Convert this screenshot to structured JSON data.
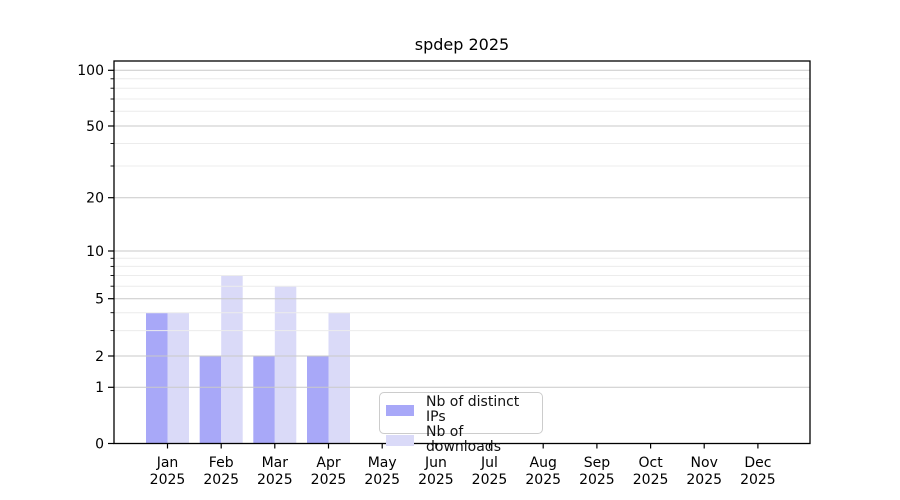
{
  "title": "spdep 2025",
  "chart_data": {
    "type": "bar",
    "title": "spdep 2025",
    "months": [
      "Jan",
      "Feb",
      "Mar",
      "Apr",
      "May",
      "Jun",
      "Jul",
      "Aug",
      "Sep",
      "Oct",
      "Nov",
      "Dec"
    ],
    "year": "2025",
    "categories": [
      "Jan 2025",
      "Feb 2025",
      "Mar 2025",
      "Apr 2025",
      "May 2025",
      "Jun 2025",
      "Jul 2025",
      "Aug 2025",
      "Sep 2025",
      "Oct 2025",
      "Nov 2025",
      "Dec 2025"
    ],
    "series": [
      {
        "name": "Nb of distinct IPs",
        "color": "#a8a8f8",
        "values": [
          4,
          2,
          2,
          2,
          0,
          0,
          0,
          0,
          0,
          0,
          0,
          0
        ]
      },
      {
        "name": "Nb of downloads",
        "color": "#dadaf8",
        "values": [
          4,
          7,
          6,
          4,
          0,
          0,
          0,
          0,
          0,
          0,
          0,
          0
        ]
      }
    ],
    "y_ticks": [
      0,
      1,
      2,
      5,
      10,
      20,
      50,
      100
    ],
    "y_minor_ticks": [
      3,
      4,
      6,
      7,
      8,
      9,
      30,
      40,
      60,
      70,
      80,
      90
    ],
    "ylim": [
      0,
      113
    ],
    "scale": "symlog (linear 0-1, log above)",
    "grid": true,
    "legend_position": "lower center"
  },
  "colors": {
    "background": "#ffffff",
    "axis": "#000000",
    "major_grid": "#c9c9c9",
    "minor_grid": "#ececec",
    "tick_label": "#000000",
    "legend_border": "#cccccc",
    "bar_distinct_ips": "#a8a8f8",
    "bar_downloads": "#dadaf8"
  }
}
